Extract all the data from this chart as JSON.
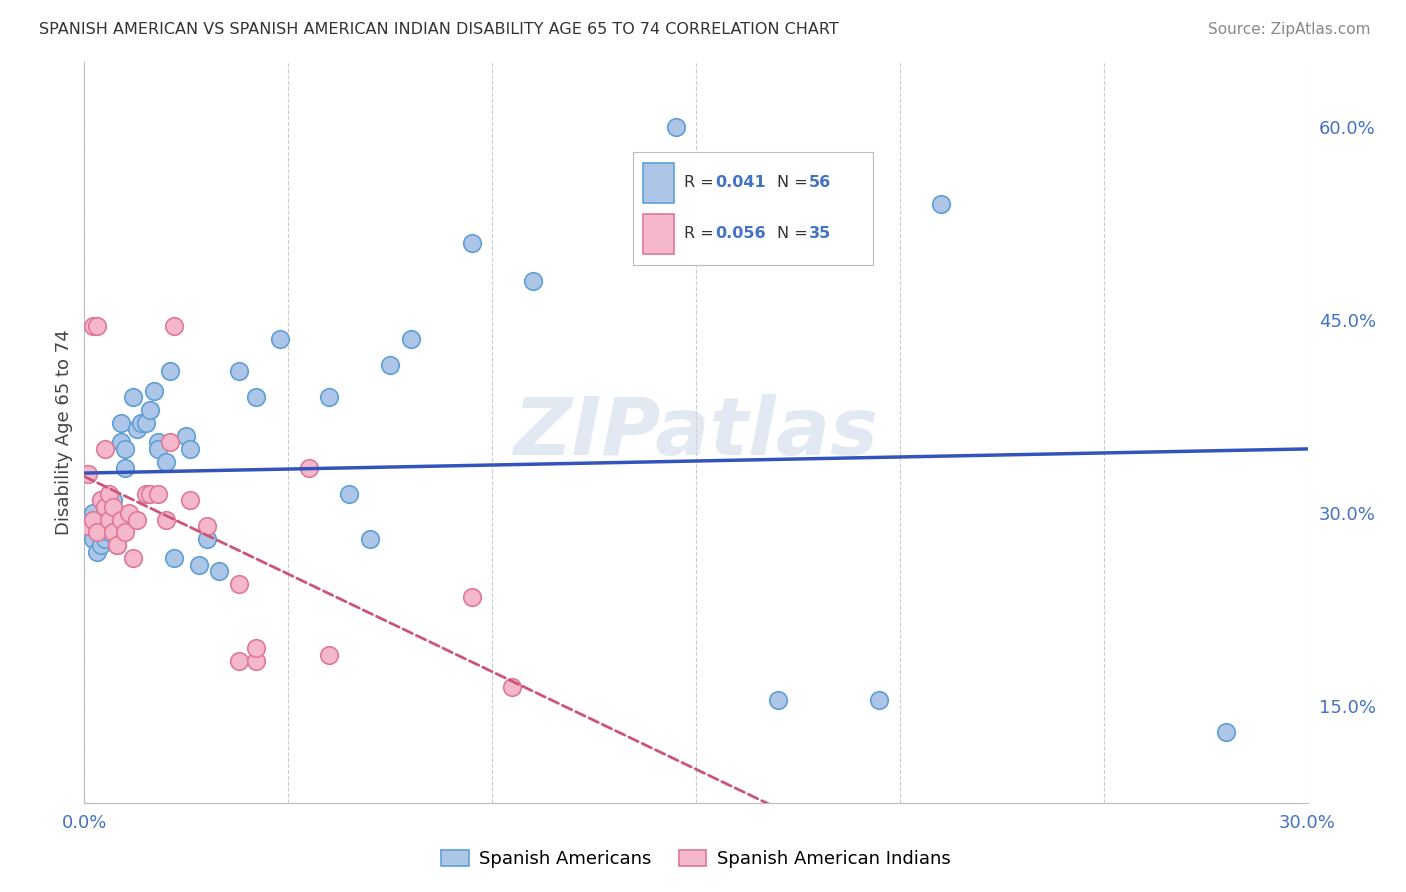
{
  "title": "SPANISH AMERICAN VS SPANISH AMERICAN INDIAN DISABILITY AGE 65 TO 74 CORRELATION CHART",
  "source": "Source: ZipAtlas.com",
  "ylabel": "Disability Age 65 to 74",
  "xlim": [
    0.0,
    0.3
  ],
  "ylim": [
    0.075,
    0.65
  ],
  "xticks": [
    0.0,
    0.05,
    0.1,
    0.15,
    0.2,
    0.25,
    0.3
  ],
  "yticks_right": [
    0.15,
    0.3,
    0.45,
    0.6
  ],
  "ytick_labels_right": [
    "15.0%",
    "30.0%",
    "45.0%",
    "60.0%"
  ],
  "xtick_labels": [
    "0.0%",
    "",
    "",
    "",
    "",
    "",
    "30.0%"
  ],
  "blue_R": 0.041,
  "blue_N": 56,
  "pink_R": 0.056,
  "pink_N": 35,
  "blue_color": "#adc6e8",
  "blue_edge": "#5e9fd4",
  "pink_color": "#f5b8ca",
  "pink_edge": "#e0789a",
  "blue_line_color": "#3355bb",
  "pink_line_color": "#cc5577",
  "watermark": "ZIPatlas",
  "legend_R_color": "#4472c4",
  "blue_x": [
    0.001,
    0.001,
    0.002,
    0.002,
    0.003,
    0.003,
    0.004,
    0.004,
    0.004,
    0.005,
    0.005,
    0.005,
    0.006,
    0.006,
    0.006,
    0.007,
    0.007,
    0.007,
    0.008,
    0.008,
    0.009,
    0.009,
    0.01,
    0.01,
    0.011,
    0.012,
    0.013,
    0.014,
    0.015,
    0.016,
    0.017,
    0.018,
    0.018,
    0.02,
    0.021,
    0.022,
    0.025,
    0.026,
    0.028,
    0.03,
    0.033,
    0.038,
    0.042,
    0.048,
    0.06,
    0.065,
    0.07,
    0.075,
    0.08,
    0.095,
    0.11,
    0.145,
    0.17,
    0.195,
    0.21,
    0.28
  ],
  "blue_y": [
    0.29,
    0.295,
    0.28,
    0.3,
    0.27,
    0.295,
    0.31,
    0.275,
    0.29,
    0.295,
    0.28,
    0.305,
    0.295,
    0.305,
    0.285,
    0.31,
    0.285,
    0.295,
    0.3,
    0.275,
    0.355,
    0.37,
    0.35,
    0.335,
    0.295,
    0.39,
    0.365,
    0.37,
    0.37,
    0.38,
    0.395,
    0.355,
    0.35,
    0.34,
    0.41,
    0.265,
    0.36,
    0.35,
    0.26,
    0.28,
    0.255,
    0.41,
    0.39,
    0.435,
    0.39,
    0.315,
    0.28,
    0.415,
    0.435,
    0.51,
    0.48,
    0.6,
    0.155,
    0.155,
    0.54,
    0.13
  ],
  "pink_x": [
    0.001,
    0.001,
    0.002,
    0.002,
    0.003,
    0.003,
    0.004,
    0.005,
    0.005,
    0.006,
    0.006,
    0.007,
    0.007,
    0.008,
    0.009,
    0.01,
    0.011,
    0.012,
    0.013,
    0.015,
    0.016,
    0.018,
    0.02,
    0.021,
    0.022,
    0.026,
    0.03,
    0.038,
    0.038,
    0.042,
    0.042,
    0.055,
    0.06,
    0.095,
    0.105
  ],
  "pink_y": [
    0.29,
    0.33,
    0.295,
    0.445,
    0.285,
    0.445,
    0.31,
    0.305,
    0.35,
    0.315,
    0.295,
    0.305,
    0.285,
    0.275,
    0.295,
    0.285,
    0.3,
    0.265,
    0.295,
    0.315,
    0.315,
    0.315,
    0.295,
    0.355,
    0.445,
    0.31,
    0.29,
    0.185,
    0.245,
    0.185,
    0.195,
    0.335,
    0.19,
    0.235,
    0.165
  ]
}
